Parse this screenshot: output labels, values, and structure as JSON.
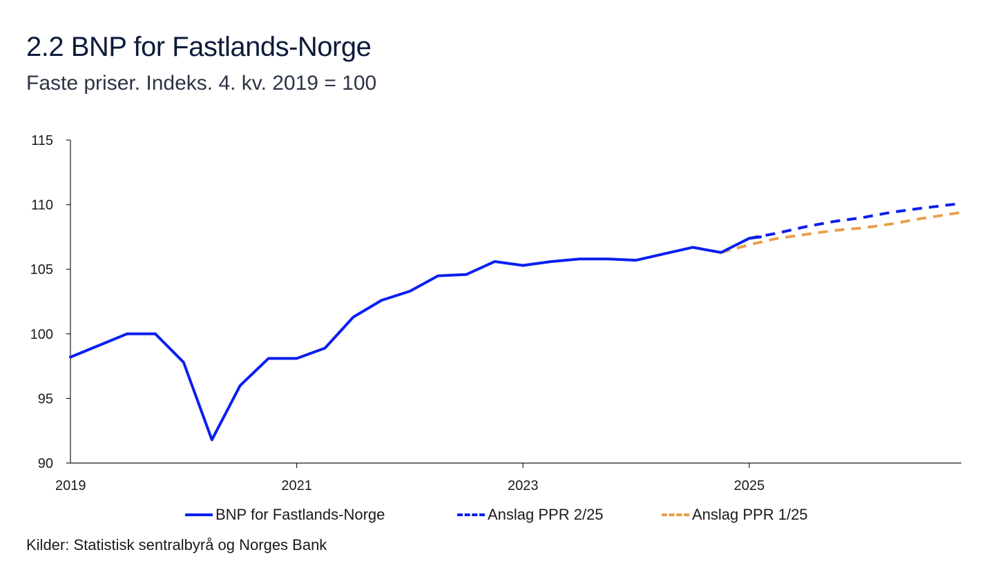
{
  "title": "2.2 BNP for Fastlands-Norge",
  "subtitle": "Faste priser. Indeks. 4. kv. 2019 = 100",
  "source": "Kilder: Statistisk sentralbyrå og Norges Bank",
  "legend": [
    {
      "label": "BNP for Fastlands-Norge",
      "style": "solid",
      "color": "#0a1ff0"
    },
    {
      "label": "Anslag PPR 2/25",
      "style": "dashed",
      "color": "#0a1ff0"
    },
    {
      "label": "Anslag PPR 1/25",
      "style": "dashed",
      "color": "#e8a04a"
    }
  ],
  "chart_data": {
    "type": "line",
    "title": "2.2 BNP for Fastlands-Norge",
    "ylabel": "Faste priser. Indeks. 4. kv. 2019 = 100",
    "xlabel": "",
    "ylim": [
      90,
      115
    ],
    "yticks": [
      "90",
      "95",
      "100",
      "105",
      "110",
      "115"
    ],
    "xlim": [
      2019.0,
      2026.875
    ],
    "xticks": [
      "2019",
      "2021",
      "2023",
      "2025"
    ],
    "grid": false,
    "legend_position": "bottom",
    "series": [
      {
        "name": "BNP for Fastlands-Norge",
        "style": "solid",
        "color": "#0a1ff0",
        "x": [
          2019.0,
          2019.25,
          2019.5,
          2019.75,
          2020.0,
          2020.25,
          2020.5,
          2020.75,
          2021.0,
          2021.25,
          2021.5,
          2021.75,
          2022.0,
          2022.25,
          2022.5,
          2022.75,
          2023.0,
          2023.25,
          2023.5,
          2023.75,
          2024.0,
          2024.25,
          2024.5,
          2024.75,
          2025.0,
          2025.1
        ],
        "values": [
          98.2,
          99.1,
          100.0,
          100.0,
          97.8,
          91.8,
          96.0,
          98.1,
          98.1,
          98.9,
          101.3,
          102.6,
          103.3,
          104.5,
          104.6,
          105.6,
          105.3,
          105.6,
          105.8,
          105.8,
          105.7,
          106.2,
          106.7,
          106.3,
          107.4,
          107.5
        ]
      },
      {
        "name": "Anslag PPR 2/25",
        "style": "dashed",
        "color": "#0a1ff0",
        "x": [
          2025.0,
          2025.25,
          2025.5,
          2025.75,
          2026.0,
          2026.25,
          2026.5,
          2026.875
        ],
        "values": [
          107.4,
          107.8,
          108.3,
          108.7,
          109.0,
          109.4,
          109.7,
          110.1
        ]
      },
      {
        "name": "Anslag PPR 1/25",
        "style": "dashed",
        "color": "#e8a04a",
        "x": [
          2024.75,
          2025.0,
          2025.25,
          2025.5,
          2025.75,
          2026.0,
          2026.25,
          2026.5,
          2026.875
        ],
        "values": [
          106.3,
          106.9,
          107.4,
          107.7,
          108.0,
          108.2,
          108.5,
          108.9,
          109.4
        ]
      }
    ]
  }
}
